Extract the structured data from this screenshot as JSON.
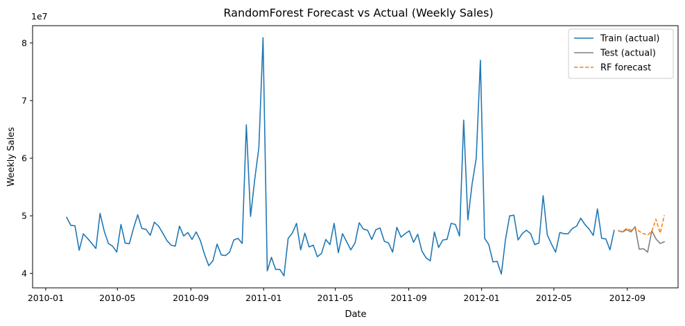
{
  "chart_data": {
    "type": "line",
    "title": "RandomForest Forecast vs Actual (Weekly Sales)",
    "xlabel": "Date",
    "ylabel": "Weekly Sales",
    "y_multiplier_label": "1e7",
    "y_scale_factor": 10000000,
    "xlim": [
      "2009-12-10",
      "2012-11-25"
    ],
    "ylim": [
      37500000,
      83000000
    ],
    "x_ticks": [
      {
        "date": "2010-01-01",
        "label": "2010-01"
      },
      {
        "date": "2010-05-01",
        "label": "2010-05"
      },
      {
        "date": "2010-09-01",
        "label": "2010-09"
      },
      {
        "date": "2011-01-01",
        "label": "2011-01"
      },
      {
        "date": "2011-05-01",
        "label": "2011-05"
      },
      {
        "date": "2011-09-01",
        "label": "2011-09"
      },
      {
        "date": "2012-01-01",
        "label": "2012-01"
      },
      {
        "date": "2012-05-01",
        "label": "2012-05"
      },
      {
        "date": "2012-09-01",
        "label": "2012-09"
      }
    ],
    "y_ticks": [
      {
        "value": 40000000,
        "label": "4"
      },
      {
        "value": 50000000,
        "label": "5"
      },
      {
        "value": 60000000,
        "label": "6"
      },
      {
        "value": 70000000,
        "label": "7"
      },
      {
        "value": 80000000,
        "label": "8"
      }
    ],
    "grid": false,
    "legend_position": "top-right",
    "series": [
      {
        "name": "Train (actual)",
        "color": "#1f77b4",
        "style": "solid",
        "points": [
          [
            "2010-02-05",
            49750000
          ],
          [
            "2010-02-12",
            48340000
          ],
          [
            "2010-02-19",
            48280000
          ],
          [
            "2010-02-26",
            44020000
          ],
          [
            "2010-03-05",
            46870000
          ],
          [
            "2010-03-12",
            46100000
          ],
          [
            "2010-03-19",
            45230000
          ],
          [
            "2010-03-26",
            44320000
          ],
          [
            "2010-04-02",
            50420000
          ],
          [
            "2010-04-09",
            47360000
          ],
          [
            "2010-04-16",
            45190000
          ],
          [
            "2010-04-23",
            44730000
          ],
          [
            "2010-04-30",
            43710000
          ],
          [
            "2010-05-07",
            48500000
          ],
          [
            "2010-05-14",
            45280000
          ],
          [
            "2010-05-21",
            45160000
          ],
          [
            "2010-05-28",
            47800000
          ],
          [
            "2010-06-04",
            50190000
          ],
          [
            "2010-06-11",
            47810000
          ],
          [
            "2010-06-18",
            47650000
          ],
          [
            "2010-06-25",
            46620000
          ],
          [
            "2010-07-02",
            48900000
          ],
          [
            "2010-07-09",
            48220000
          ],
          [
            "2010-07-16",
            46980000
          ],
          [
            "2010-07-23",
            45700000
          ],
          [
            "2010-07-30",
            44900000
          ],
          [
            "2010-08-06",
            44750000
          ],
          [
            "2010-08-13",
            48200000
          ],
          [
            "2010-08-20",
            46500000
          ],
          [
            "2010-08-27",
            47100000
          ],
          [
            "2010-09-03",
            45900000
          ],
          [
            "2010-09-10",
            47200000
          ],
          [
            "2010-09-17",
            45700000
          ],
          [
            "2010-09-24",
            43300000
          ],
          [
            "2010-10-01",
            41350000
          ],
          [
            "2010-10-08",
            42200000
          ],
          [
            "2010-10-15",
            45100000
          ],
          [
            "2010-10-22",
            43200000
          ],
          [
            "2010-10-29",
            43100000
          ],
          [
            "2010-11-05",
            43700000
          ],
          [
            "2010-11-12",
            45800000
          ],
          [
            "2010-11-19",
            46100000
          ],
          [
            "2010-11-26",
            45200000
          ],
          [
            "2010-12-03",
            65800000
          ],
          [
            "2010-12-10",
            49900000
          ],
          [
            "2010-12-17",
            56300000
          ],
          [
            "2010-12-24",
            61900000
          ],
          [
            "2010-12-31",
            80900000
          ],
          [
            "2011-01-07",
            40450000
          ],
          [
            "2011-01-14",
            42800000
          ],
          [
            "2011-01-21",
            40700000
          ],
          [
            "2011-01-28",
            40700000
          ],
          [
            "2011-02-04",
            39600000
          ],
          [
            "2011-02-11",
            46100000
          ],
          [
            "2011-02-18",
            47000000
          ],
          [
            "2011-02-25",
            48700000
          ],
          [
            "2011-03-04",
            44100000
          ],
          [
            "2011-03-11",
            47000000
          ],
          [
            "2011-03-18",
            44600000
          ],
          [
            "2011-03-25",
            44900000
          ],
          [
            "2011-04-01",
            42900000
          ],
          [
            "2011-04-08",
            43500000
          ],
          [
            "2011-04-15",
            45900000
          ],
          [
            "2011-04-22",
            45000000
          ],
          [
            "2011-04-29",
            48700000
          ],
          [
            "2011-05-06",
            43600000
          ],
          [
            "2011-05-13",
            46900000
          ],
          [
            "2011-05-20",
            45500000
          ],
          [
            "2011-05-27",
            44100000
          ],
          [
            "2011-06-03",
            45300000
          ],
          [
            "2011-06-10",
            48800000
          ],
          [
            "2011-06-17",
            47700000
          ],
          [
            "2011-06-24",
            47500000
          ],
          [
            "2011-07-01",
            45900000
          ],
          [
            "2011-07-08",
            47600000
          ],
          [
            "2011-07-15",
            47900000
          ],
          [
            "2011-07-22",
            45600000
          ],
          [
            "2011-07-29",
            45300000
          ],
          [
            "2011-08-05",
            43700000
          ],
          [
            "2011-08-12",
            48000000
          ],
          [
            "2011-08-19",
            46300000
          ],
          [
            "2011-08-26",
            46900000
          ],
          [
            "2011-09-02",
            47400000
          ],
          [
            "2011-09-09",
            45400000
          ],
          [
            "2011-09-16",
            46800000
          ],
          [
            "2011-09-23",
            43900000
          ],
          [
            "2011-09-30",
            42700000
          ],
          [
            "2011-10-07",
            42200000
          ],
          [
            "2011-10-14",
            47200000
          ],
          [
            "2011-10-21",
            44500000
          ],
          [
            "2011-10-28",
            45800000
          ],
          [
            "2011-11-04",
            45900000
          ],
          [
            "2011-11-11",
            48700000
          ],
          [
            "2011-11-18",
            48500000
          ],
          [
            "2011-11-25",
            46500000
          ],
          [
            "2011-12-02",
            66600000
          ],
          [
            "2011-12-09",
            49300000
          ],
          [
            "2011-12-16",
            55500000
          ],
          [
            "2011-12-23",
            60000000
          ],
          [
            "2011-12-30",
            77000000
          ],
          [
            "2012-01-06",
            46100000
          ],
          [
            "2012-01-13",
            45000000
          ],
          [
            "2012-01-20",
            42000000
          ],
          [
            "2012-01-27",
            42100000
          ],
          [
            "2012-02-03",
            39900000
          ],
          [
            "2012-02-10",
            45900000
          ],
          [
            "2012-02-17",
            50000000
          ],
          [
            "2012-02-24",
            50100000
          ],
          [
            "2012-03-02",
            45800000
          ],
          [
            "2012-03-09",
            46900000
          ],
          [
            "2012-03-16",
            47500000
          ],
          [
            "2012-03-23",
            46900000
          ],
          [
            "2012-03-30",
            45000000
          ],
          [
            "2012-04-06",
            45300000
          ],
          [
            "2012-04-13",
            53500000
          ],
          [
            "2012-04-20",
            46700000
          ],
          [
            "2012-04-27",
            45100000
          ],
          [
            "2012-05-04",
            43700000
          ],
          [
            "2012-05-11",
            47100000
          ],
          [
            "2012-05-18",
            46900000
          ],
          [
            "2012-05-25",
            46900000
          ],
          [
            "2012-06-01",
            47800000
          ],
          [
            "2012-06-08",
            48200000
          ],
          [
            "2012-06-15",
            49600000
          ],
          [
            "2012-06-22",
            48500000
          ],
          [
            "2012-06-29",
            47700000
          ],
          [
            "2012-07-06",
            46600000
          ],
          [
            "2012-07-13",
            51200000
          ],
          [
            "2012-07-20",
            46100000
          ],
          [
            "2012-07-27",
            46000000
          ],
          [
            "2012-08-03",
            44100000
          ],
          [
            "2012-08-10",
            47500000
          ]
        ]
      },
      {
        "name": "Test (actual)",
        "color": "#7f7f7f",
        "style": "solid",
        "points": [
          [
            "2012-08-17",
            47400000
          ],
          [
            "2012-08-24",
            47200000
          ],
          [
            "2012-08-31",
            47600000
          ],
          [
            "2012-09-07",
            47200000
          ],
          [
            "2012-09-14",
            48100000
          ],
          [
            "2012-09-21",
            44200000
          ],
          [
            "2012-09-28",
            44300000
          ],
          [
            "2012-10-05",
            43700000
          ],
          [
            "2012-10-12",
            47400000
          ],
          [
            "2012-10-19",
            46000000
          ],
          [
            "2012-10-26",
            45200000
          ],
          [
            "2012-11-02",
            45500000
          ]
        ]
      },
      {
        "name": "RF forecast",
        "color": "#ff7f0e",
        "style": "dashed",
        "points": [
          [
            "2012-08-17",
            47400000
          ],
          [
            "2012-08-24",
            47300000
          ],
          [
            "2012-08-31",
            47800000
          ],
          [
            "2012-09-07",
            47500000
          ],
          [
            "2012-09-14",
            47900000
          ],
          [
            "2012-09-21",
            47300000
          ],
          [
            "2012-09-28",
            46900000
          ],
          [
            "2012-10-05",
            46700000
          ],
          [
            "2012-10-12",
            47300000
          ],
          [
            "2012-10-19",
            49400000
          ],
          [
            "2012-10-26",
            47000000
          ],
          [
            "2012-11-02",
            50100000
          ]
        ]
      }
    ]
  }
}
